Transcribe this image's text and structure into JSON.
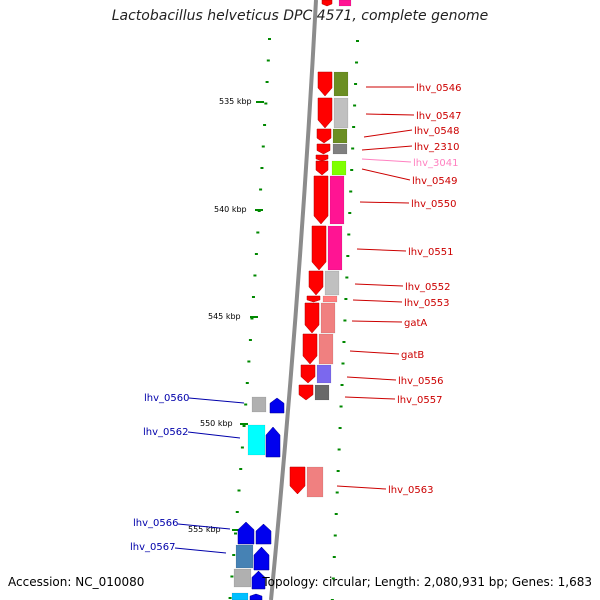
{
  "title": "Lactobacillus helveticus DPC 4571, complete genome",
  "footer": {
    "accession": "Accession: NC_010080",
    "topology": "Topology: circular; Length: 2,080,931 bp; Genes: 1,683"
  },
  "colors": {
    "forward_gene": "#0000ee",
    "reverse_gene": "#ff0000",
    "label_forward": "#0000aa",
    "label_reverse": "#cc0000",
    "label_rna": "#ff80c0",
    "tick": "#008800",
    "backbone": "#8c8c8c"
  },
  "kbp_labels": [
    "535 kbp",
    "540 kbp",
    "545 kbp",
    "550 kbp",
    "555 kbp"
  ],
  "reverse_labels": [
    {
      "text": "lhv_0546"
    },
    {
      "text": "lhv_0547"
    },
    {
      "text": "lhv_0548"
    },
    {
      "text": "lhv_2310"
    },
    {
      "text": "lhv_3041"
    },
    {
      "text": "lhv_0549"
    },
    {
      "text": "lhv_0550"
    },
    {
      "text": "lhv_0551"
    },
    {
      "text": "lhv_0552"
    },
    {
      "text": "lhv_0553"
    },
    {
      "text": "gatA"
    },
    {
      "text": "gatB"
    },
    {
      "text": "lhv_0556"
    },
    {
      "text": "lhv_0557"
    },
    {
      "text": "lhv_0563"
    }
  ],
  "forward_labels": [
    {
      "text": "lhv_0560"
    },
    {
      "text": "lhv_0562"
    },
    {
      "text": "lhv_0566"
    },
    {
      "text": "lhv_0567"
    }
  ]
}
